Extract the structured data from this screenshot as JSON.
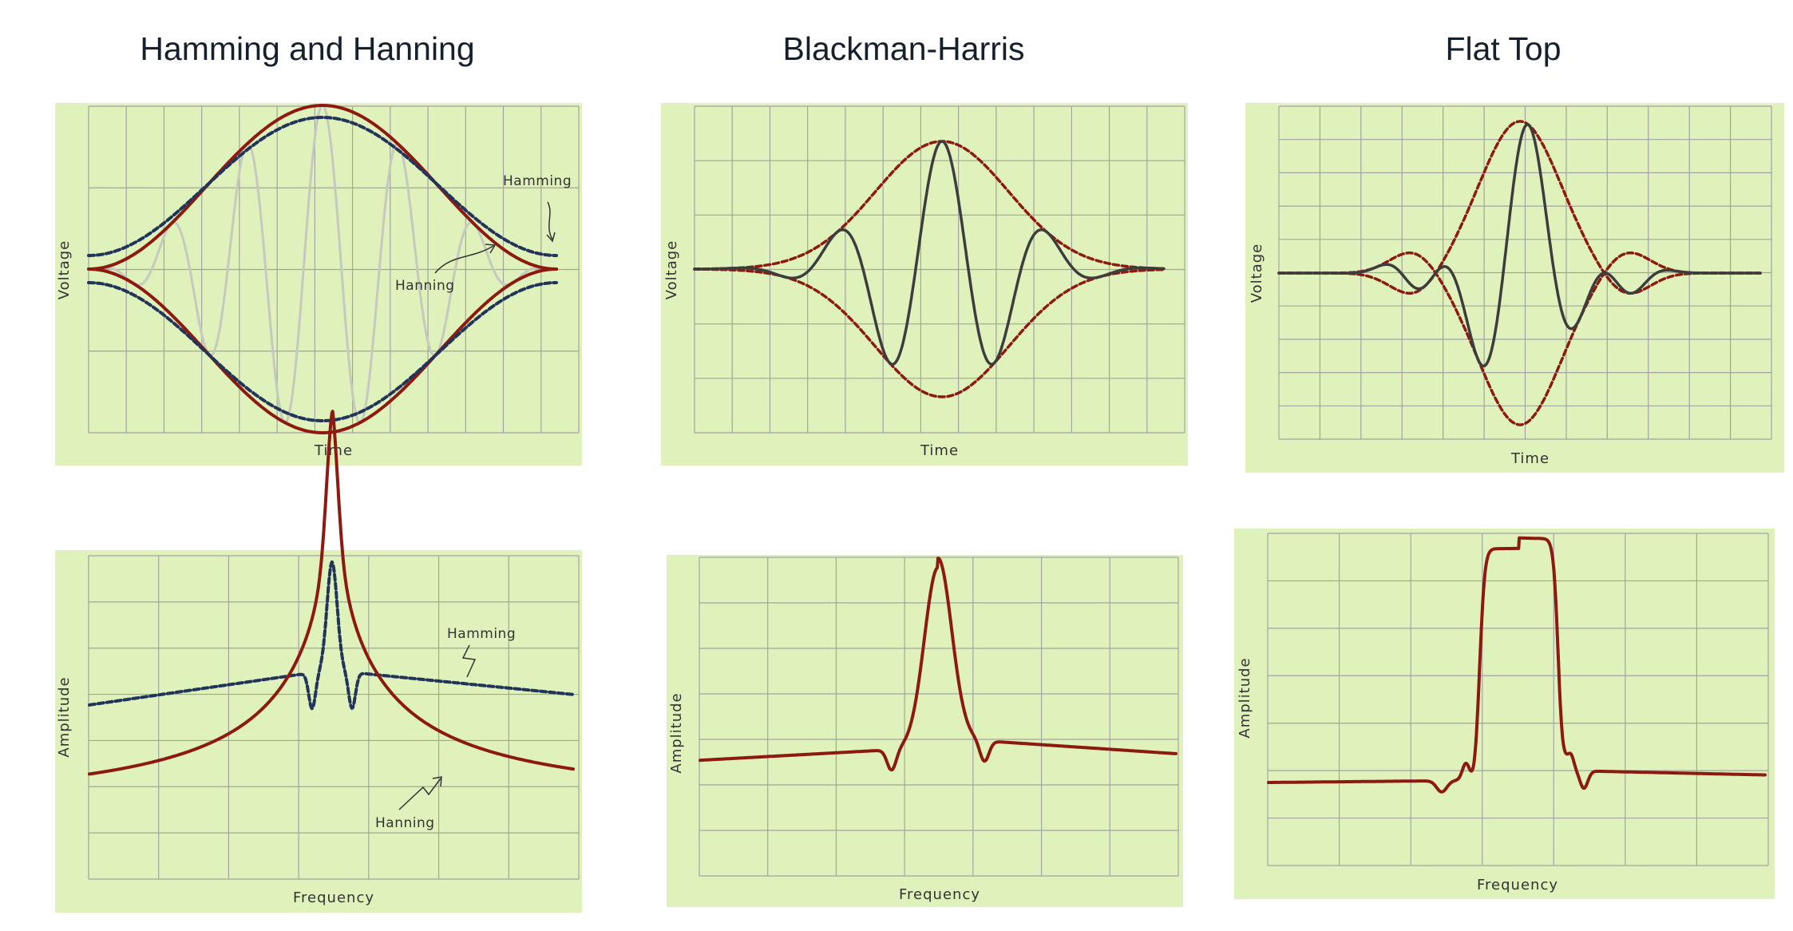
{
  "columns": [
    {
      "title": "Hamming and Hanning"
    },
    {
      "title": "Blackman-Harris"
    },
    {
      "title": "Flat Top"
    }
  ],
  "colors": {
    "panel_bg": "#dff2bb",
    "grid": "#a3a3a3",
    "red": "#8c1a10",
    "navy": "#22345a",
    "signal_dark": "#3d3d3d",
    "signal_light": "#c6c9be"
  },
  "chart_data": [
    {
      "type": "line",
      "window": "hamming-hanning",
      "domain": "time",
      "xlabel": "Time",
      "ylabel": "Voltage",
      "grid": true,
      "annotations": [
        {
          "text": "Hamming"
        },
        {
          "text": "Hanning"
        }
      ],
      "series": [
        {
          "name": "Hamming",
          "style": "dashed",
          "color": "#22345a",
          "role": "envelope"
        },
        {
          "name": "Hanning",
          "style": "solid",
          "color": "#8c1a10",
          "role": "envelope"
        },
        {
          "style": "solid",
          "color": "#c6c9be",
          "role": "signal"
        }
      ]
    },
    {
      "type": "line",
      "window": "blackman-harris",
      "domain": "time",
      "xlabel": "Time",
      "ylabel": "Voltage",
      "grid": true,
      "series": [
        {
          "style": "dashed",
          "color": "#8c1a10",
          "role": "envelope"
        },
        {
          "style": "solid",
          "color": "#3d3d3d",
          "role": "signal"
        }
      ]
    },
    {
      "type": "line",
      "window": "flat-top",
      "domain": "time",
      "xlabel": "Time",
      "ylabel": "Voltage",
      "grid": true,
      "series": [
        {
          "style": "dashed",
          "color": "#8c1a10",
          "role": "envelope"
        },
        {
          "style": "solid",
          "color": "#3d3d3d",
          "role": "signal"
        }
      ]
    },
    {
      "type": "line",
      "window": "hamming-hanning",
      "domain": "frequency",
      "xlabel": "Frequency",
      "ylabel": "Amplitude",
      "grid": true,
      "annotations": [
        {
          "text": "Hamming"
        },
        {
          "text": "Hanning"
        }
      ],
      "series": [
        {
          "name": "Hamming",
          "style": "dashed",
          "color": "#22345a"
        },
        {
          "name": "Hanning",
          "style": "solid",
          "color": "#8c1a10"
        }
      ]
    },
    {
      "type": "line",
      "window": "blackman-harris",
      "domain": "frequency",
      "xlabel": "Frequency",
      "ylabel": "Amplitude",
      "grid": true,
      "series": [
        {
          "style": "solid",
          "color": "#8c1a10"
        }
      ]
    },
    {
      "type": "line",
      "window": "flat-top",
      "domain": "frequency",
      "xlabel": "Frequency",
      "ylabel": "Amplitude",
      "grid": true,
      "series": [
        {
          "style": "solid",
          "color": "#8c1a10"
        }
      ]
    }
  ]
}
